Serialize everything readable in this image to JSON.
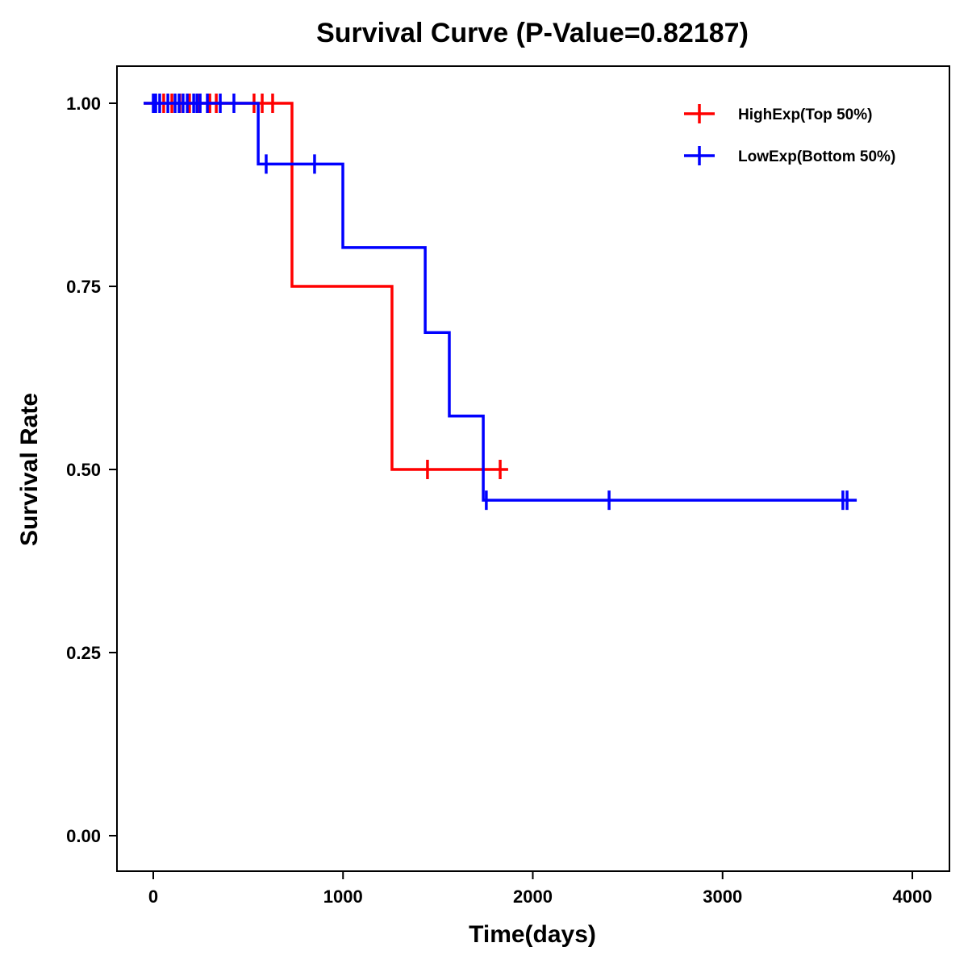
{
  "chart_data": {
    "type": "line",
    "subtype": "kaplan-meier step",
    "title": "Survival Curve (P-Value=0.82187)",
    "xlabel": "Time(days)",
    "ylabel": "Survival Rate",
    "xlim": [
      -190,
      4190
    ],
    "ylim": [
      -0.05,
      1.05
    ],
    "xticks": [
      "0",
      "1000",
      "2000",
      "3000",
      "4000"
    ],
    "xtick_values": [
      0,
      1000,
      2000,
      3000,
      4000
    ],
    "yticks": [
      "0.00",
      "0.25",
      "0.50",
      "0.75",
      "1.00"
    ],
    "ytick_values": [
      0,
      0.25,
      0.5,
      0.75,
      1.0
    ],
    "grid": false,
    "legend_position": "top-right",
    "series": [
      {
        "name": "HighExp(Top 50%)",
        "color": "#FF0000",
        "steps": [
          [
            0,
            1.0
          ],
          [
            731,
            0.75
          ],
          [
            1258,
            0.5
          ]
        ],
        "end": 1870,
        "censored": [
          [
            55,
            1.0
          ],
          [
            98,
            1.0
          ],
          [
            140,
            1.0
          ],
          [
            191,
            1.0
          ],
          [
            234,
            1.0
          ],
          [
            298,
            1.0
          ],
          [
            332,
            1.0
          ],
          [
            531,
            1.0
          ],
          [
            574,
            1.0
          ],
          [
            629,
            1.0
          ],
          [
            1445,
            0.5
          ],
          [
            1828,
            0.5
          ]
        ]
      },
      {
        "name": "LowExp(Bottom 50%)",
        "color": "#0000FF",
        "steps": [
          [
            0,
            1.0
          ],
          [
            553,
            0.917
          ],
          [
            999,
            0.803
          ],
          [
            1433,
            0.687
          ],
          [
            1560,
            0.573
          ],
          [
            1739,
            0.458
          ]
        ],
        "end": 3707,
        "censored": [
          [
            0,
            1.0
          ],
          [
            13,
            1.0
          ],
          [
            34,
            1.0
          ],
          [
            77,
            1.0
          ],
          [
            115,
            1.0
          ],
          [
            136,
            1.0
          ],
          [
            157,
            1.0
          ],
          [
            179,
            1.0
          ],
          [
            213,
            1.0
          ],
          [
            230,
            1.0
          ],
          [
            247,
            1.0
          ],
          [
            285,
            1.0
          ],
          [
            353,
            1.0
          ],
          [
            425,
            1.0
          ],
          [
            595,
            0.917
          ],
          [
            850,
            0.917
          ],
          [
            1755,
            0.458
          ],
          [
            2402,
            0.458
          ],
          [
            3634,
            0.458
          ],
          [
            3656,
            0.458
          ]
        ]
      }
    ]
  }
}
